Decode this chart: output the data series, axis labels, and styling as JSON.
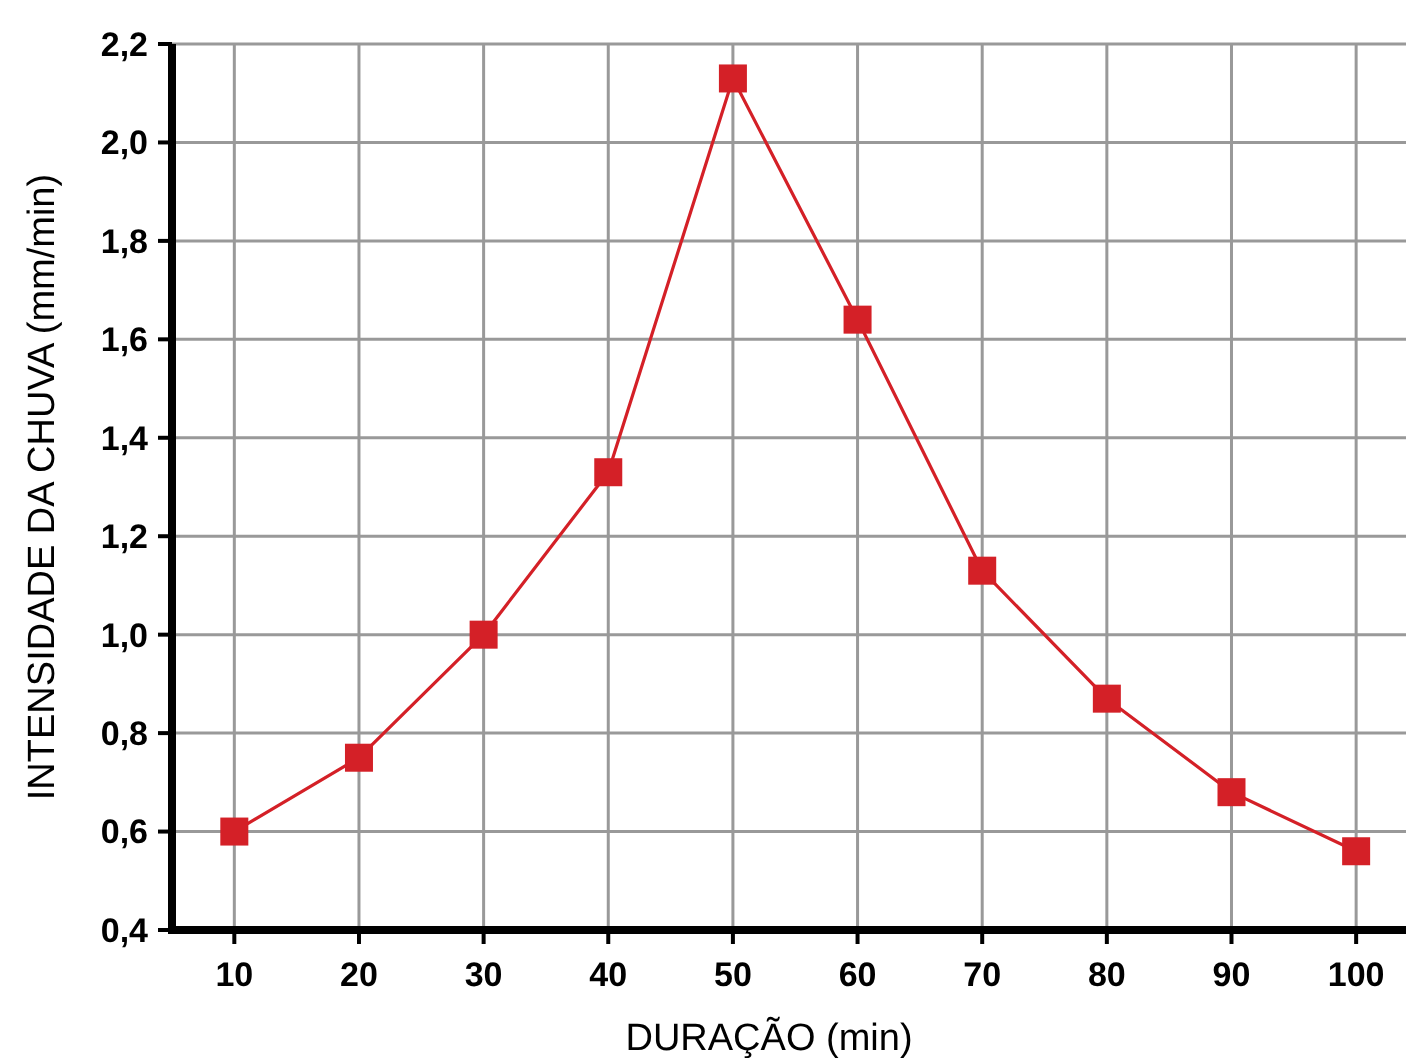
{
  "chart_data": {
    "type": "line",
    "xlabel": "DURAÇÃO (min)",
    "ylabel": "INTENSIDADE DA CHUVA (mm/min)",
    "x": [
      10,
      20,
      30,
      40,
      50,
      60,
      70,
      80,
      90,
      100
    ],
    "series": [
      {
        "color": "#d42027",
        "values": [
          0.6,
          0.75,
          1.0,
          1.33,
          2.13,
          1.64,
          1.13,
          0.87,
          0.68,
          0.56
        ]
      }
    ],
    "xlim": [
      5,
      104
    ],
    "xticks": [
      10,
      20,
      30,
      40,
      50,
      60,
      70,
      80,
      90,
      100
    ],
    "ylim": [
      0.4,
      2.2
    ],
    "yticks": [
      {
        "value": 0.4,
        "label": "0,4"
      },
      {
        "value": 0.6,
        "label": "0,6"
      },
      {
        "value": 0.8,
        "label": "0,8"
      },
      {
        "value": 1.0,
        "label": "1,0"
      },
      {
        "value": 1.2,
        "label": "1,2"
      },
      {
        "value": 1.4,
        "label": "1,4"
      },
      {
        "value": 1.6,
        "label": "1,6"
      },
      {
        "value": 1.8,
        "label": "1,8"
      },
      {
        "value": 2.0,
        "label": "2,0"
      },
      {
        "value": 2.2,
        "label": "2,2"
      }
    ],
    "grid": true,
    "marker": "square",
    "line_style": "solid"
  }
}
